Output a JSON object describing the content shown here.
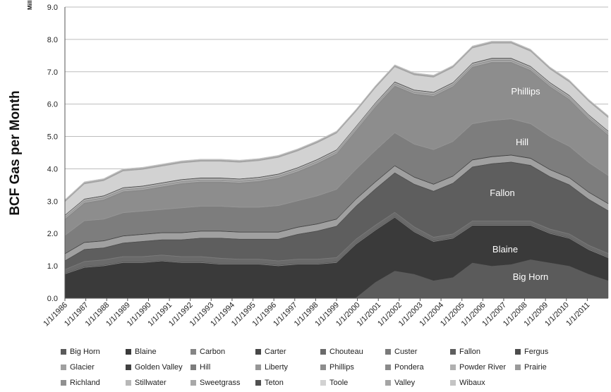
{
  "chart_data": {
    "type": "area",
    "stacked": true,
    "ylabel": "BCF Gas per Month",
    "y_unit": "Millions",
    "ylim": [
      0,
      9
    ],
    "yticks": [
      "0.0",
      "1.0",
      "2.0",
      "3.0",
      "4.0",
      "5.0",
      "6.0",
      "7.0",
      "8.0",
      "9.0"
    ],
    "x_tick_labels": [
      "1/1/1986",
      "1/1/1987",
      "1/1/1988",
      "1/1/1989",
      "1/1/1990",
      "1/1/1991",
      "1/1/1992",
      "1/1/1993",
      "1/1/1994",
      "1/1/1995",
      "1/1/1996",
      "1/1/1997",
      "1/1/1998",
      "1/1/1999",
      "1/1/2000",
      "1/1/2001",
      "1/1/2002",
      "1/1/2003",
      "1/1/2004",
      "1/1/2005",
      "1/1/2006",
      "1/1/2007",
      "1/1/2008",
      "1/1/2009",
      "1/1/2010",
      "1/1/2011"
    ],
    "grid": true,
    "legend_position": "bottom",
    "series": [
      {
        "name": "Big Horn",
        "color": "#5b5b5b",
        "values": [
          0.0,
          0.0,
          0.0,
          0.0,
          0.0,
          0.0,
          0.0,
          0.0,
          0.0,
          0.0,
          0.0,
          0.0,
          0.0,
          0.0,
          0.0,
          0.02,
          0.5,
          0.85,
          0.75,
          0.55,
          0.65,
          1.1,
          1.0,
          1.05,
          1.2,
          1.1,
          1.0,
          0.75,
          0.55
        ]
      },
      {
        "name": "Blaine",
        "color": "#3a3a3a",
        "values": [
          0.75,
          0.95,
          1.0,
          1.1,
          1.1,
          1.15,
          1.1,
          1.1,
          1.05,
          1.05,
          1.05,
          1.0,
          1.05,
          1.05,
          1.1,
          1.65,
          1.6,
          1.65,
          1.3,
          1.2,
          1.2,
          1.15,
          1.25,
          1.2,
          1.05,
          0.9,
          0.85,
          0.75,
          0.7
        ]
      },
      {
        "name": "Carbon",
        "color": "#858585",
        "values": [
          0.02,
          0.02,
          0.02,
          0.02,
          0.02,
          0.02,
          0.02,
          0.02,
          0.02,
          0.02,
          0.02,
          0.02,
          0.02,
          0.02,
          0.02,
          0.02,
          0.02,
          0.02,
          0.02,
          0.02,
          0.02,
          0.02,
          0.02,
          0.02,
          0.02,
          0.02,
          0.02,
          0.02,
          0.02
        ]
      },
      {
        "name": "Carter",
        "color": "#474747",
        "values": [
          0.01,
          0.01,
          0.01,
          0.01,
          0.01,
          0.01,
          0.01,
          0.01,
          0.01,
          0.01,
          0.01,
          0.01,
          0.01,
          0.01,
          0.01,
          0.01,
          0.01,
          0.01,
          0.01,
          0.01,
          0.01,
          0.01,
          0.01,
          0.01,
          0.01,
          0.01,
          0.01,
          0.01,
          0.01
        ]
      },
      {
        "name": "Chouteau",
        "color": "#6a6a6a",
        "values": [
          0.1,
          0.15,
          0.15,
          0.15,
          0.15,
          0.15,
          0.15,
          0.15,
          0.15,
          0.12,
          0.12,
          0.12,
          0.12,
          0.12,
          0.12,
          0.12,
          0.12,
          0.12,
          0.12,
          0.1,
          0.1,
          0.1,
          0.1,
          0.1,
          0.1,
          0.1,
          0.1,
          0.1,
          0.1
        ]
      },
      {
        "name": "Custer",
        "color": "#7a7a7a",
        "values": [
          0.02,
          0.02,
          0.02,
          0.02,
          0.02,
          0.02,
          0.02,
          0.02,
          0.02,
          0.02,
          0.02,
          0.02,
          0.02,
          0.02,
          0.02,
          0.02,
          0.02,
          0.02,
          0.02,
          0.02,
          0.02,
          0.02,
          0.02,
          0.02,
          0.02,
          0.02,
          0.02,
          0.02,
          0.02
        ]
      },
      {
        "name": "Fallon",
        "color": "#5e5e5e",
        "values": [
          0.25,
          0.35,
          0.35,
          0.4,
          0.45,
          0.45,
          0.5,
          0.55,
          0.6,
          0.6,
          0.6,
          0.65,
          0.75,
          0.85,
          0.95,
          1.0,
          1.1,
          1.2,
          1.3,
          1.4,
          1.55,
          1.65,
          1.75,
          1.8,
          1.7,
          1.6,
          1.5,
          1.4,
          1.3
        ]
      },
      {
        "name": "Fergus",
        "color": "#4d4d4d",
        "values": [
          0.02,
          0.02,
          0.02,
          0.02,
          0.02,
          0.02,
          0.02,
          0.02,
          0.02,
          0.02,
          0.02,
          0.02,
          0.02,
          0.02,
          0.02,
          0.02,
          0.02,
          0.02,
          0.02,
          0.02,
          0.02,
          0.02,
          0.02,
          0.02,
          0.02,
          0.02,
          0.02,
          0.02,
          0.02
        ]
      },
      {
        "name": "Glacier",
        "color": "#a0a0a0",
        "values": [
          0.2,
          0.2,
          0.2,
          0.2,
          0.2,
          0.2,
          0.2,
          0.2,
          0.2,
          0.2,
          0.2,
          0.2,
          0.2,
          0.2,
          0.2,
          0.2,
          0.2,
          0.2,
          0.2,
          0.2,
          0.2,
          0.2,
          0.2,
          0.2,
          0.2,
          0.2,
          0.2,
          0.2,
          0.2
        ]
      },
      {
        "name": "Golden Valley",
        "color": "#414141",
        "values": [
          0.02,
          0.02,
          0.02,
          0.02,
          0.02,
          0.02,
          0.02,
          0.02,
          0.02,
          0.02,
          0.02,
          0.02,
          0.02,
          0.02,
          0.02,
          0.02,
          0.02,
          0.02,
          0.02,
          0.02,
          0.02,
          0.02,
          0.02,
          0.02,
          0.02,
          0.02,
          0.02,
          0.02,
          0.02
        ]
      },
      {
        "name": "Hill",
        "color": "#7d7d7d",
        "values": [
          0.55,
          0.65,
          0.65,
          0.7,
          0.7,
          0.7,
          0.75,
          0.75,
          0.75,
          0.75,
          0.75,
          0.8,
          0.8,
          0.85,
          0.9,
          0.9,
          0.95,
          1.0,
          1.0,
          1.05,
          1.05,
          1.1,
          1.1,
          1.1,
          1.05,
          1.0,
          0.95,
          0.9,
          0.85
        ]
      },
      {
        "name": "Liberty",
        "color": "#969696",
        "values": [
          0.02,
          0.02,
          0.02,
          0.02,
          0.02,
          0.02,
          0.02,
          0.02,
          0.02,
          0.02,
          0.02,
          0.02,
          0.02,
          0.02,
          0.02,
          0.02,
          0.02,
          0.02,
          0.02,
          0.02,
          0.02,
          0.02,
          0.02,
          0.02,
          0.02,
          0.02,
          0.02,
          0.02,
          0.02
        ]
      },
      {
        "name": "Phillips",
        "color": "#8d8d8d",
        "values": [
          0.45,
          0.5,
          0.55,
          0.6,
          0.6,
          0.65,
          0.7,
          0.7,
          0.7,
          0.7,
          0.75,
          0.8,
          0.85,
          0.95,
          1.05,
          1.15,
          1.3,
          1.4,
          1.5,
          1.6,
          1.65,
          1.7,
          1.75,
          1.7,
          1.6,
          1.5,
          1.4,
          1.3,
          1.2
        ]
      },
      {
        "name": "Pondera",
        "color": "#8a8a8a",
        "values": [
          0.05,
          0.05,
          0.05,
          0.05,
          0.05,
          0.05,
          0.05,
          0.05,
          0.05,
          0.05,
          0.05,
          0.05,
          0.05,
          0.05,
          0.05,
          0.05,
          0.05,
          0.05,
          0.05,
          0.05,
          0.05,
          0.05,
          0.05,
          0.05,
          0.05,
          0.05,
          0.05,
          0.05,
          0.05
        ]
      },
      {
        "name": "Powder River",
        "color": "#b0b0b0",
        "values": [
          0.02,
          0.02,
          0.02,
          0.02,
          0.02,
          0.02,
          0.02,
          0.02,
          0.02,
          0.02,
          0.02,
          0.02,
          0.02,
          0.02,
          0.02,
          0.02,
          0.02,
          0.02,
          0.02,
          0.02,
          0.02,
          0.02,
          0.02,
          0.02,
          0.02,
          0.02,
          0.02,
          0.02,
          0.02
        ]
      },
      {
        "name": "Prairie",
        "color": "#9a9a9a",
        "values": [
          0.02,
          0.02,
          0.02,
          0.02,
          0.02,
          0.02,
          0.02,
          0.02,
          0.02,
          0.02,
          0.02,
          0.02,
          0.02,
          0.02,
          0.02,
          0.02,
          0.02,
          0.02,
          0.02,
          0.02,
          0.02,
          0.02,
          0.02,
          0.02,
          0.02,
          0.02,
          0.02,
          0.02,
          0.02
        ]
      },
      {
        "name": "Richland",
        "color": "#909090",
        "values": [
          0.02,
          0.02,
          0.02,
          0.02,
          0.02,
          0.02,
          0.02,
          0.02,
          0.02,
          0.02,
          0.02,
          0.02,
          0.02,
          0.02,
          0.02,
          0.02,
          0.02,
          0.02,
          0.02,
          0.02,
          0.02,
          0.02,
          0.02,
          0.02,
          0.02,
          0.02,
          0.02,
          0.02,
          0.02
        ]
      },
      {
        "name": "Stillwater",
        "color": "#b8b8b8",
        "values": [
          0.02,
          0.02,
          0.02,
          0.02,
          0.02,
          0.02,
          0.02,
          0.02,
          0.02,
          0.02,
          0.02,
          0.02,
          0.02,
          0.02,
          0.02,
          0.02,
          0.02,
          0.02,
          0.02,
          0.02,
          0.02,
          0.02,
          0.02,
          0.02,
          0.02,
          0.02,
          0.02,
          0.02,
          0.02
        ]
      },
      {
        "name": "Sweetgrass",
        "color": "#a8a8a8",
        "values": [
          0.02,
          0.02,
          0.02,
          0.02,
          0.02,
          0.02,
          0.02,
          0.02,
          0.02,
          0.02,
          0.02,
          0.02,
          0.02,
          0.02,
          0.02,
          0.02,
          0.02,
          0.02,
          0.02,
          0.02,
          0.02,
          0.02,
          0.02,
          0.02,
          0.02,
          0.02,
          0.02,
          0.02,
          0.02
        ]
      },
      {
        "name": "Teton",
        "color": "#505050",
        "values": [
          0.02,
          0.02,
          0.02,
          0.02,
          0.02,
          0.02,
          0.02,
          0.02,
          0.02,
          0.02,
          0.02,
          0.02,
          0.02,
          0.02,
          0.02,
          0.02,
          0.02,
          0.02,
          0.02,
          0.02,
          0.02,
          0.02,
          0.02,
          0.02,
          0.02,
          0.02,
          0.02,
          0.02,
          0.02
        ]
      },
      {
        "name": "Toole",
        "color": "#d2d2d2",
        "values": [
          0.4,
          0.45,
          0.45,
          0.5,
          0.5,
          0.5,
          0.5,
          0.5,
          0.5,
          0.5,
          0.5,
          0.5,
          0.5,
          0.5,
          0.5,
          0.45,
          0.45,
          0.45,
          0.45,
          0.45,
          0.45,
          0.45,
          0.45,
          0.45,
          0.45,
          0.4,
          0.4,
          0.4,
          0.4
        ]
      },
      {
        "name": "Valley",
        "color": "#a5a5a5",
        "values": [
          0.05,
          0.05,
          0.05,
          0.05,
          0.05,
          0.05,
          0.05,
          0.05,
          0.05,
          0.05,
          0.05,
          0.05,
          0.05,
          0.05,
          0.05,
          0.05,
          0.05,
          0.05,
          0.05,
          0.05,
          0.05,
          0.05,
          0.05,
          0.05,
          0.05,
          0.05,
          0.05,
          0.05,
          0.05
        ]
      },
      {
        "name": "Wibaux",
        "color": "#c4c4c4",
        "values": [
          0.02,
          0.02,
          0.02,
          0.02,
          0.02,
          0.02,
          0.02,
          0.02,
          0.02,
          0.02,
          0.02,
          0.02,
          0.02,
          0.02,
          0.02,
          0.02,
          0.02,
          0.02,
          0.02,
          0.02,
          0.02,
          0.02,
          0.02,
          0.02,
          0.02,
          0.02,
          0.02,
          0.02,
          0.02
        ]
      }
    ],
    "annotations": [
      "Phillips",
      "Hill",
      "Fallon",
      "Blaine",
      "Big Horn"
    ]
  }
}
